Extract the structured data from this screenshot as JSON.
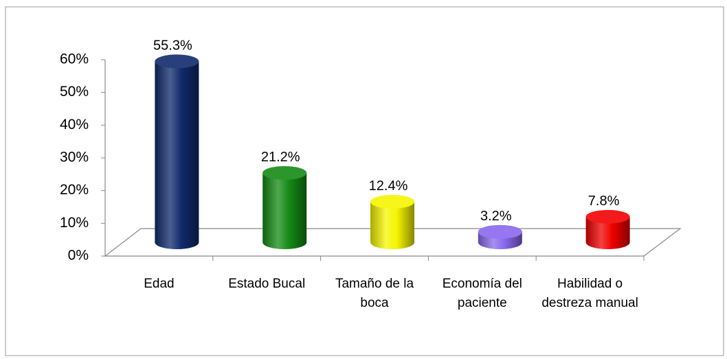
{
  "chart_data": {
    "type": "bar3d",
    "categories": [
      "Edad",
      "Estado Bucal",
      "Tamaño de la boca",
      "Economía del paciente",
      "Habilidad o destreza manual"
    ],
    "values": [
      55.3,
      21.2,
      12.4,
      3.2,
      7.8
    ],
    "value_labels": [
      "55.3%",
      "21.2%",
      "12.4%",
      "3.2%",
      "7.8%"
    ],
    "colors": [
      "#102a6c",
      "#148a14",
      "#f5f500",
      "#8a68ee",
      "#f00000"
    ],
    "ylim": [
      0,
      60
    ],
    "yticks": [
      {
        "value": 0,
        "label": "0%"
      },
      {
        "value": 10,
        "label": "10%"
      },
      {
        "value": 20,
        "label": "20%"
      },
      {
        "value": 30,
        "label": "30%"
      },
      {
        "value": 40,
        "label": "40%"
      },
      {
        "value": 50,
        "label": "50%"
      },
      {
        "value": 60,
        "label": "60%"
      }
    ],
    "grid": false
  }
}
